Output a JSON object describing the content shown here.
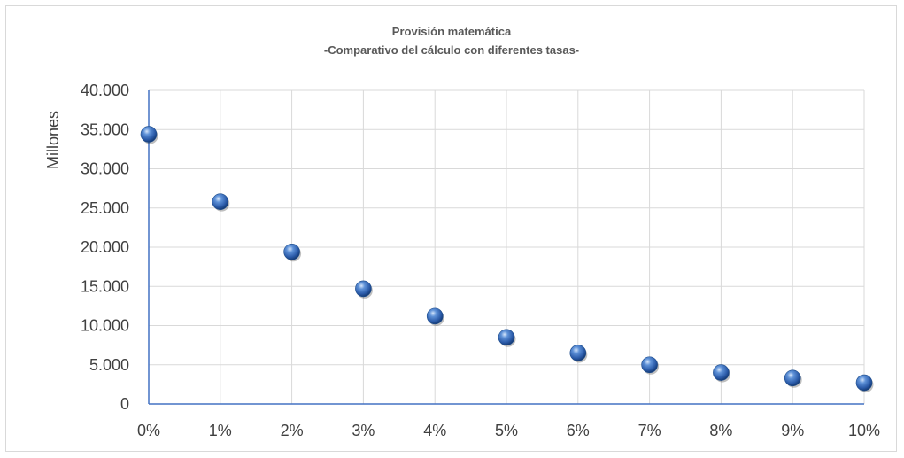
{
  "chart_data": {
    "type": "scatter",
    "title": "Provisión matemática",
    "subtitle": "-Comparativo del cálculo con diferentes tasas-",
    "xlabel": "",
    "ylabel": "Millones",
    "x_categories": [
      "0%",
      "1%",
      "2%",
      "3%",
      "4%",
      "5%",
      "6%",
      "7%",
      "8%",
      "9%",
      "10%"
    ],
    "y_ticks": [
      "0",
      "5.000",
      "10.000",
      "15.000",
      "20.000",
      "25.000",
      "30.000",
      "35.000",
      "40.000"
    ],
    "ylim": [
      0,
      40000
    ],
    "grid": true,
    "legend": "none",
    "marker_color": "#2e62b8",
    "series": [
      {
        "x": [
          0,
          1,
          2,
          3,
          4,
          5,
          6,
          7,
          8,
          9,
          10
        ],
        "values": [
          34400,
          25800,
          19400,
          14700,
          11200,
          8500,
          6500,
          5000,
          4000,
          3300,
          2700
        ]
      }
    ]
  }
}
